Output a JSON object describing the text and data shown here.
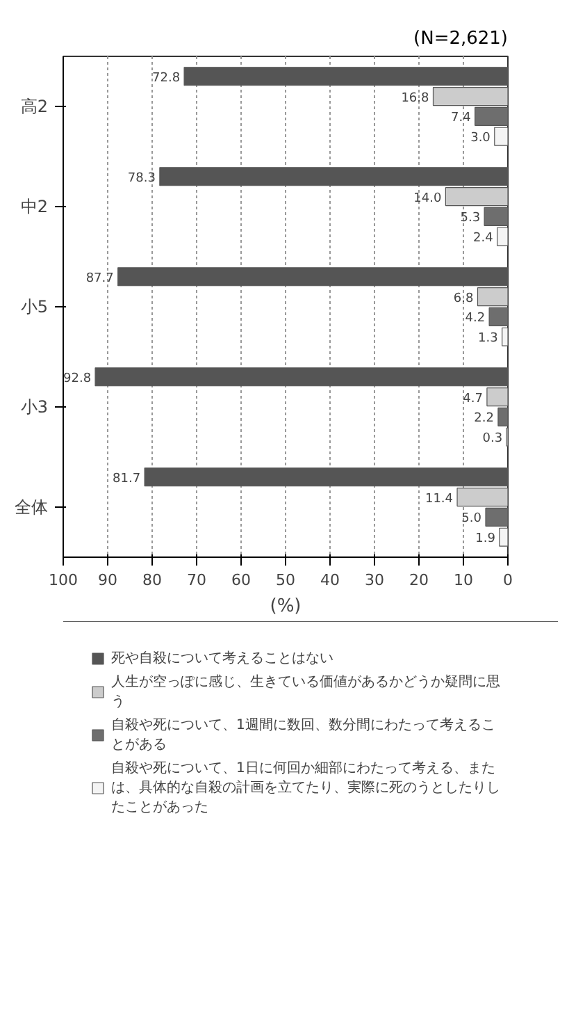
{
  "chart_data": {
    "type": "bar",
    "orientation": "horizontal",
    "categories": [
      "高2",
      "中2",
      "小5",
      "小3",
      "全体"
    ],
    "series": [
      {
        "name": "死や自殺について考えることはない",
        "color": "#555555",
        "values": [
          72.8,
          78.3,
          87.7,
          92.8,
          81.7
        ],
        "value_labels": [
          "72.8",
          "78.3",
          "87.7",
          "92.8",
          "81.7"
        ]
      },
      {
        "name": "人生が空っぽに感じ、生きている価値があるかどうか疑問に思う",
        "color": "#cccccc",
        "values": [
          16.8,
          14.0,
          6.8,
          4.7,
          11.4
        ],
        "value_labels": [
          "16.8",
          "14.0",
          "6.8",
          "4.7",
          "11.4"
        ]
      },
      {
        "name": "自殺や死について、1週間に数回、数分間にわたって考えることがある",
        "color": "#6e6e6e",
        "values": [
          7.4,
          5.3,
          4.2,
          2.2,
          5.0
        ],
        "value_labels": [
          "7.4",
          "5.3",
          "4.2",
          "2.2",
          "5.0"
        ]
      },
      {
        "name": "自殺や死について、1日に何回か細部にわたって考える、または、具体的な自殺の計画を立てたり、実際に死のうとしたりしたことがあった",
        "color": "#f4f4f4",
        "values": [
          3.0,
          2.4,
          1.3,
          0.3,
          1.9
        ],
        "value_labels": [
          "3.0",
          "2.4",
          "1.3",
          "0.3",
          "1.9"
        ]
      }
    ],
    "xlabel": "(%)",
    "xlim": [
      100,
      0
    ],
    "xticks": [
      0,
      10,
      20,
      30,
      40,
      50,
      60,
      70,
      80,
      90,
      100
    ],
    "grid": "x",
    "legend": "bottom",
    "data_labels": true,
    "annotations": [
      "(N=2,621)"
    ]
  }
}
